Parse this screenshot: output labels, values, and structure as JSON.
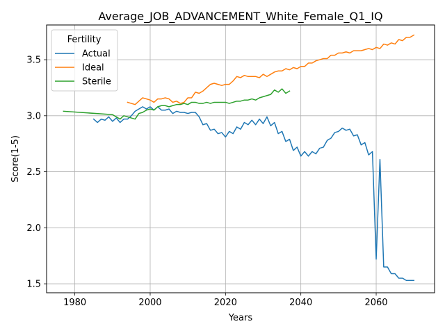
{
  "chart_data": {
    "type": "line",
    "title": "Average_JOB_ADVANCEMENT_White_Female_Q1_IQ",
    "xlabel": "Years",
    "ylabel": "Score(1-5)",
    "xlim": [
      1972.5,
      2075.5
    ],
    "ylim": [
      1.42,
      3.81
    ],
    "xticks": [
      1980,
      2000,
      2020,
      2040,
      2060
    ],
    "yticks": [
      1.5,
      2.0,
      2.5,
      3.0,
      3.5
    ],
    "ytick_labels": [
      "1.5",
      "2.0",
      "2.5",
      "3.0",
      "3.5"
    ],
    "grid": true,
    "legend": {
      "title": "Fertility",
      "placement": "top-left"
    },
    "series": [
      {
        "name": "Actual",
        "color": "#1f77b4",
        "points": [
          [
            1985,
            2.97
          ],
          [
            1986,
            2.94
          ],
          [
            1987,
            2.97
          ],
          [
            1988,
            2.96
          ],
          [
            1989,
            2.99
          ],
          [
            1990,
            2.95
          ],
          [
            1991,
            2.98
          ],
          [
            1992,
            2.94
          ],
          [
            1993,
            2.97
          ],
          [
            1994,
            2.97
          ],
          [
            1995,
            3.0
          ],
          [
            1996,
            3.04
          ],
          [
            1997,
            3.06
          ],
          [
            1998,
            3.08
          ],
          [
            1999,
            3.06
          ],
          [
            2000,
            3.08
          ],
          [
            2001,
            3.05
          ],
          [
            2002,
            3.08
          ],
          [
            2003,
            3.05
          ],
          [
            2004,
            3.05
          ],
          [
            2005,
            3.06
          ],
          [
            2006,
            3.02
          ],
          [
            2007,
            3.04
          ],
          [
            2008,
            3.03
          ],
          [
            2009,
            3.03
          ],
          [
            2010,
            3.02
          ],
          [
            2011,
            3.03
          ],
          [
            2012,
            3.03
          ],
          [
            2013,
            2.99
          ],
          [
            2014,
            2.92
          ],
          [
            2015,
            2.93
          ],
          [
            2016,
            2.87
          ],
          [
            2017,
            2.88
          ],
          [
            2018,
            2.84
          ],
          [
            2019,
            2.85
          ],
          [
            2020,
            2.81
          ],
          [
            2021,
            2.86
          ],
          [
            2022,
            2.84
          ],
          [
            2023,
            2.9
          ],
          [
            2024,
            2.88
          ],
          [
            2025,
            2.94
          ],
          [
            2026,
            2.92
          ],
          [
            2027,
            2.96
          ],
          [
            2028,
            2.92
          ],
          [
            2029,
            2.97
          ],
          [
            2030,
            2.93
          ],
          [
            2031,
            2.99
          ],
          [
            2032,
            2.91
          ],
          [
            2033,
            2.94
          ],
          [
            2034,
            2.84
          ],
          [
            2035,
            2.86
          ],
          [
            2036,
            2.77
          ],
          [
            2037,
            2.79
          ],
          [
            2038,
            2.69
          ],
          [
            2039,
            2.72
          ],
          [
            2040,
            2.64
          ],
          [
            2041,
            2.68
          ],
          [
            2042,
            2.64
          ],
          [
            2043,
            2.68
          ],
          [
            2044,
            2.66
          ],
          [
            2045,
            2.71
          ],
          [
            2046,
            2.72
          ],
          [
            2047,
            2.78
          ],
          [
            2048,
            2.8
          ],
          [
            2049,
            2.85
          ],
          [
            2050,
            2.86
          ],
          [
            2051,
            2.89
          ],
          [
            2052,
            2.87
          ],
          [
            2053,
            2.88
          ],
          [
            2054,
            2.82
          ],
          [
            2055,
            2.83
          ],
          [
            2056,
            2.74
          ],
          [
            2057,
            2.76
          ],
          [
            2058,
            2.65
          ],
          [
            2059,
            2.68
          ],
          [
            2060,
            1.72
          ],
          [
            2061,
            2.61
          ],
          [
            2062,
            1.65
          ],
          [
            2063,
            1.65
          ],
          [
            2064,
            1.59
          ],
          [
            2065,
            1.59
          ],
          [
            2066,
            1.55
          ],
          [
            2067,
            1.55
          ],
          [
            2068,
            1.53
          ],
          [
            2069,
            1.53
          ],
          [
            2070,
            1.53
          ]
        ]
      },
      {
        "name": "Ideal",
        "color": "#ff7f0e",
        "points": [
          [
            1994,
            3.12
          ],
          [
            1995,
            3.11
          ],
          [
            1996,
            3.1
          ],
          [
            1997,
            3.13
          ],
          [
            1998,
            3.16
          ],
          [
            1999,
            3.15
          ],
          [
            2000,
            3.14
          ],
          [
            2001,
            3.12
          ],
          [
            2002,
            3.15
          ],
          [
            2003,
            3.15
          ],
          [
            2004,
            3.16
          ],
          [
            2005,
            3.15
          ],
          [
            2006,
            3.12
          ],
          [
            2007,
            3.13
          ],
          [
            2008,
            3.11
          ],
          [
            2009,
            3.12
          ],
          [
            2010,
            3.16
          ],
          [
            2011,
            3.16
          ],
          [
            2012,
            3.21
          ],
          [
            2013,
            3.2
          ],
          [
            2014,
            3.22
          ],
          [
            2015,
            3.25
          ],
          [
            2016,
            3.28
          ],
          [
            2017,
            3.29
          ],
          [
            2018,
            3.28
          ],
          [
            2019,
            3.27
          ],
          [
            2020,
            3.28
          ],
          [
            2021,
            3.28
          ],
          [
            2022,
            3.31
          ],
          [
            2023,
            3.35
          ],
          [
            2024,
            3.34
          ],
          [
            2025,
            3.36
          ],
          [
            2026,
            3.35
          ],
          [
            2027,
            3.35
          ],
          [
            2028,
            3.35
          ],
          [
            2029,
            3.34
          ],
          [
            2030,
            3.37
          ],
          [
            2031,
            3.35
          ],
          [
            2032,
            3.37
          ],
          [
            2033,
            3.39
          ],
          [
            2034,
            3.4
          ],
          [
            2035,
            3.4
          ],
          [
            2036,
            3.42
          ],
          [
            2037,
            3.41
          ],
          [
            2038,
            3.43
          ],
          [
            2039,
            3.42
          ],
          [
            2040,
            3.44
          ],
          [
            2041,
            3.44
          ],
          [
            2042,
            3.47
          ],
          [
            2043,
            3.47
          ],
          [
            2044,
            3.49
          ],
          [
            2045,
            3.5
          ],
          [
            2046,
            3.51
          ],
          [
            2047,
            3.51
          ],
          [
            2048,
            3.54
          ],
          [
            2049,
            3.54
          ],
          [
            2050,
            3.56
          ],
          [
            2051,
            3.56
          ],
          [
            2052,
            3.57
          ],
          [
            2053,
            3.56
          ],
          [
            2054,
            3.58
          ],
          [
            2055,
            3.58
          ],
          [
            2056,
            3.58
          ],
          [
            2057,
            3.59
          ],
          [
            2058,
            3.6
          ],
          [
            2059,
            3.59
          ],
          [
            2060,
            3.61
          ],
          [
            2061,
            3.6
          ],
          [
            2062,
            3.64
          ],
          [
            2063,
            3.63
          ],
          [
            2064,
            3.65
          ],
          [
            2065,
            3.64
          ],
          [
            2066,
            3.68
          ],
          [
            2067,
            3.67
          ],
          [
            2068,
            3.7
          ],
          [
            2069,
            3.7
          ],
          [
            2070,
            3.72
          ]
        ]
      },
      {
        "name": "Sterile",
        "color": "#2ca02c",
        "points": [
          [
            1977,
            3.04
          ],
          [
            1990,
            3.01
          ],
          [
            1991,
            2.99
          ],
          [
            1992,
            2.97
          ],
          [
            1993,
            3.0
          ],
          [
            1994,
            2.99
          ],
          [
            1995,
            2.98
          ],
          [
            1996,
            2.97
          ],
          [
            1997,
            3.02
          ],
          [
            1998,
            3.03
          ],
          [
            1999,
            3.05
          ],
          [
            2000,
            3.06
          ],
          [
            2001,
            3.05
          ],
          [
            2002,
            3.08
          ],
          [
            2003,
            3.09
          ],
          [
            2004,
            3.09
          ],
          [
            2005,
            3.08
          ],
          [
            2006,
            3.09
          ],
          [
            2007,
            3.1
          ],
          [
            2008,
            3.1
          ],
          [
            2009,
            3.11
          ],
          [
            2010,
            3.1
          ],
          [
            2011,
            3.12
          ],
          [
            2012,
            3.12
          ],
          [
            2013,
            3.11
          ],
          [
            2014,
            3.11
          ],
          [
            2015,
            3.12
          ],
          [
            2016,
            3.11
          ],
          [
            2017,
            3.12
          ],
          [
            2018,
            3.12
          ],
          [
            2019,
            3.12
          ],
          [
            2020,
            3.12
          ],
          [
            2021,
            3.11
          ],
          [
            2022,
            3.12
          ],
          [
            2023,
            3.13
          ],
          [
            2024,
            3.13
          ],
          [
            2025,
            3.14
          ],
          [
            2026,
            3.14
          ],
          [
            2027,
            3.15
          ],
          [
            2028,
            3.14
          ],
          [
            2029,
            3.16
          ],
          [
            2030,
            3.17
          ],
          [
            2031,
            3.18
          ],
          [
            2032,
            3.19
          ],
          [
            2033,
            3.23
          ],
          [
            2034,
            3.21
          ],
          [
            2035,
            3.24
          ],
          [
            2036,
            3.2
          ],
          [
            2037,
            3.22
          ]
        ]
      }
    ]
  }
}
